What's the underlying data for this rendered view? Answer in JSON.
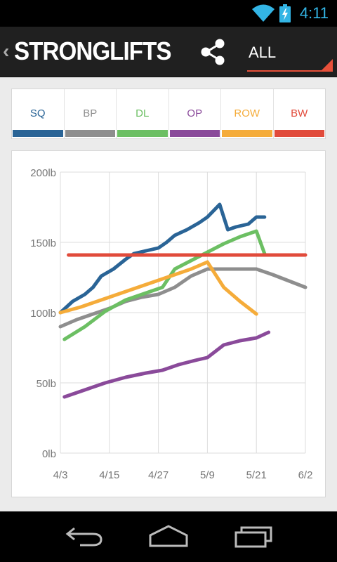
{
  "status_bar": {
    "time": "4:11",
    "wifi_icon": "wifi-icon",
    "battery_icon": "battery-charging-icon",
    "icon_color": "#33b5e5"
  },
  "action_bar": {
    "back_icon": "chevron-left-icon",
    "title": "STRONGLIFTS",
    "share_icon": "share-icon",
    "filter_value": "ALL",
    "accent_color": "#e8503a"
  },
  "lift_tabs": [
    {
      "label": "SQ",
      "color": "#2a6496"
    },
    {
      "label": "BP",
      "color": "#8e8e8e"
    },
    {
      "label": "DL",
      "color": "#6cbf63"
    },
    {
      "label": "OP",
      "color": "#8a4a9a"
    },
    {
      "label": "ROW",
      "color": "#f5ac3a"
    },
    {
      "label": "BW",
      "color": "#e14b3b"
    }
  ],
  "chart_data": {
    "type": "line",
    "y_unit": "lb",
    "ylim": [
      0,
      200
    ],
    "y_ticks": [
      "0lb",
      "50lb",
      "100lb",
      "150lb",
      "200lb"
    ],
    "x_ticks": [
      "4/3",
      "4/15",
      "4/27",
      "5/9",
      "5/21",
      "6/2"
    ],
    "grid": true,
    "series": [
      {
        "name": "SQ",
        "color": "#2a6496",
        "points": [
          [
            "4/3",
            100
          ],
          [
            "4/6",
            108
          ],
          [
            "4/9",
            113
          ],
          [
            "4/11",
            118
          ],
          [
            "4/13",
            126
          ],
          [
            "4/16",
            131
          ],
          [
            "4/19",
            138
          ],
          [
            "4/21",
            142
          ],
          [
            "4/24",
            144
          ],
          [
            "4/27",
            146
          ],
          [
            "4/29",
            150
          ],
          [
            "5/1",
            155
          ],
          [
            "5/4",
            159
          ],
          [
            "5/7",
            164
          ],
          [
            "5/9",
            168
          ],
          [
            "5/12",
            177
          ],
          [
            "5/14",
            159
          ],
          [
            "5/16",
            161
          ],
          [
            "5/19",
            163
          ],
          [
            "5/21",
            168
          ],
          [
            "5/23",
            168
          ]
        ]
      },
      {
        "name": "BP",
        "color": "#8e8e8e",
        "points": [
          [
            "4/3",
            90
          ],
          [
            "4/7",
            95
          ],
          [
            "4/11",
            99
          ],
          [
            "4/15",
            103
          ],
          [
            "4/19",
            108
          ],
          [
            "4/23",
            111
          ],
          [
            "4/27",
            113
          ],
          [
            "5/1",
            118
          ],
          [
            "5/5",
            126
          ],
          [
            "5/9",
            131
          ],
          [
            "5/12",
            131
          ],
          [
            "5/15",
            131
          ],
          [
            "5/21",
            131
          ],
          [
            "5/25",
            127
          ],
          [
            "6/2",
            118
          ]
        ]
      },
      {
        "name": "DL",
        "color": "#6cbf63",
        "points": [
          [
            "4/4",
            81
          ],
          [
            "4/9",
            90
          ],
          [
            "4/14",
            101
          ],
          [
            "4/19",
            109
          ],
          [
            "4/24",
            114
          ],
          [
            "4/28",
            118
          ],
          [
            "5/1",
            131
          ],
          [
            "5/5",
            137
          ],
          [
            "5/9",
            143
          ],
          [
            "5/13",
            149
          ],
          [
            "5/17",
            154
          ],
          [
            "5/21",
            158
          ],
          [
            "5/23",
            142
          ]
        ]
      },
      {
        "name": "OP",
        "color": "#8a4a9a",
        "points": [
          [
            "4/4",
            40
          ],
          [
            "4/9",
            45
          ],
          [
            "4/14",
            50
          ],
          [
            "4/19",
            54
          ],
          [
            "4/24",
            57
          ],
          [
            "4/28",
            59
          ],
          [
            "5/2",
            63
          ],
          [
            "5/6",
            66
          ],
          [
            "5/9",
            68
          ],
          [
            "5/13",
            77
          ],
          [
            "5/17",
            80
          ],
          [
            "5/21",
            82
          ],
          [
            "5/24",
            86
          ]
        ]
      },
      {
        "name": "ROW",
        "color": "#f5ac3a",
        "points": [
          [
            "4/3",
            100
          ],
          [
            "4/8",
            104
          ],
          [
            "4/14",
            110
          ],
          [
            "4/20",
            116
          ],
          [
            "4/26",
            122
          ],
          [
            "5/1",
            127
          ],
          [
            "5/5",
            131
          ],
          [
            "5/9",
            136
          ],
          [
            "5/13",
            118
          ],
          [
            "5/17",
            108
          ],
          [
            "5/21",
            99
          ]
        ]
      },
      {
        "name": "BW",
        "color": "#e14b3b",
        "points": [
          [
            "4/5",
            141
          ],
          [
            "6/2",
            141
          ]
        ]
      }
    ]
  },
  "nav_bar": {
    "back_icon": "nav-back-icon",
    "home_icon": "nav-home-icon",
    "recents_icon": "nav-recents-icon"
  }
}
